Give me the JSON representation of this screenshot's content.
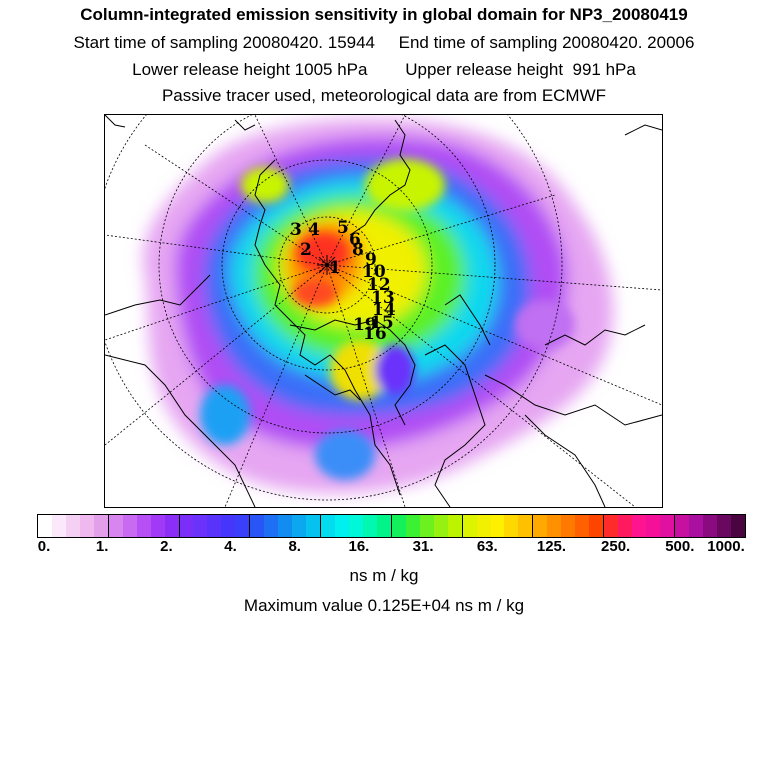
{
  "title": "Column-integrated emission sensitivity in global domain for NP3_20080419",
  "sampling_line": "Start time of sampling 20080420. 15944     End time of sampling 20080420. 20006",
  "release_line": "Lower release height 1005 hPa        Upper release height  991 hPa",
  "tracer_line": "Passive tracer used, meteorological data are from ECMWF",
  "colorbar": {
    "colors": [
      "#ffffff",
      "#fbe8fb",
      "#f5d0f5",
      "#efb8ef",
      "#e49fea",
      "#d985ef",
      "#c96af2",
      "#b64ff4",
      "#a239f6",
      "#8b2ff7",
      "#7a2ef8",
      "#6a32fa",
      "#5a33fb",
      "#4636fb",
      "#3a3ff9",
      "#2a55f6",
      "#1d70f4",
      "#138cf2",
      "#0ba8f0",
      "#06c2ee",
      "#03dcee",
      "#00f0f0",
      "#00f8d8",
      "#00f8b0",
      "#00f488",
      "#14f05a",
      "#3cf034",
      "#6cf020",
      "#96f010",
      "#bcf400",
      "#dcf400",
      "#f0f000",
      "#fff000",
      "#ffd800",
      "#ffc000",
      "#ffa800",
      "#ff9000",
      "#ff7800",
      "#ff6000",
      "#ff4400",
      "#ff2a2a",
      "#ff1a60",
      "#ff1490",
      "#f5109a",
      "#e010a0",
      "#c810a0",
      "#aa10a0",
      "#8a0a80",
      "#6a0860",
      "#4a0440"
    ],
    "tick_labels": [
      "0.",
      "1.",
      "2.",
      "4.",
      "8.",
      "16.",
      "31.",
      "63.",
      "125.",
      "250.",
      "500.",
      "1000."
    ]
  },
  "unit_label": "ns m / kg",
  "max_value_text": "Maximum value  0.125E+04 ns m / kg",
  "site_labels": [
    "1",
    "2",
    "3",
    "4",
    "5",
    "6",
    "8",
    "9",
    "10",
    "12",
    "13",
    "14",
    "15",
    "16",
    "19"
  ]
}
